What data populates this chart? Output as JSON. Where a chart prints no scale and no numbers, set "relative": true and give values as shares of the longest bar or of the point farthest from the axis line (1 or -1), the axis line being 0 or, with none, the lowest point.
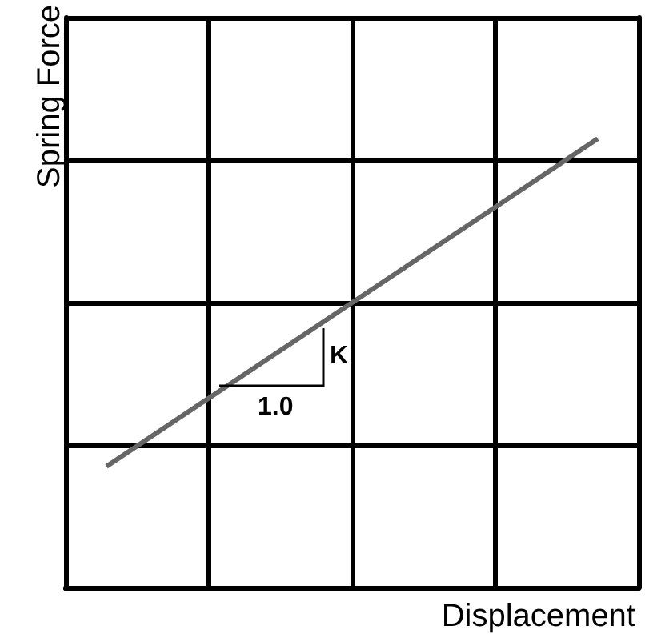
{
  "chart_data": {
    "type": "line",
    "xlabel": "Displacement",
    "ylabel": "Spring Force",
    "relative": true,
    "grid": true,
    "categories": [
      null,
      null,
      null,
      null,
      null,
      null,
      null,
      null,
      null,
      null,
      null,
      null,
      null,
      null,
      null
    ],
    "series": [
      {
        "color": "#666666",
        "values": [
          null,
          0.27,
          null,
          null,
          null,
          null,
          null,
          null,
          null,
          null,
          null,
          null,
          null,
          1,
          null
        ]
      }
    ],
    "annotations": [
      "K",
      "1.0"
    ]
  }
}
